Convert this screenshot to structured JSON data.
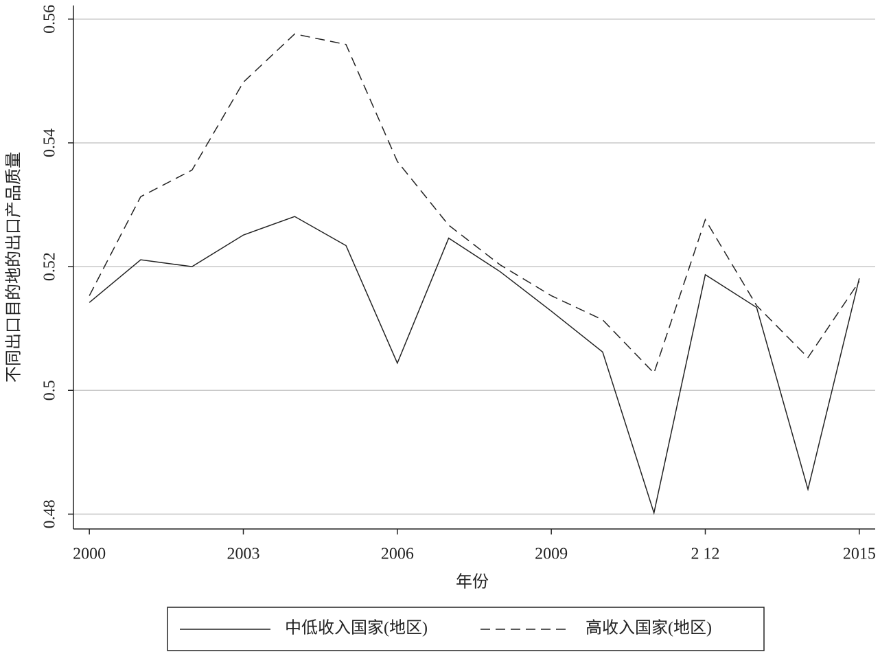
{
  "chart_data": {
    "type": "line",
    "x_label": "年份",
    "y_label": "不同出口目的地的出口产品质量",
    "x": [
      2000,
      2001,
      2002,
      2003,
      2004,
      2005,
      2006,
      2007,
      2008,
      2009,
      2010,
      2011,
      2012,
      2013,
      2014,
      2015
    ],
    "series": [
      {
        "name": "中低收入国家(地区)",
        "color": "#222222",
        "style": "solid",
        "values": [
          0.5142,
          0.5211,
          0.52,
          0.5251,
          0.5281,
          0.5234,
          0.5044,
          0.5246,
          0.5192,
          0.5128,
          0.5062,
          0.4802,
          0.5187,
          0.5134,
          0.484,
          0.5181
        ]
      },
      {
        "name": "高收入国家(地区)",
        "color": "#222222",
        "style": "dashed",
        "values": [
          0.5153,
          0.5313,
          0.5356,
          0.5498,
          0.5576,
          0.5559,
          0.537,
          0.5267,
          0.5203,
          0.5153,
          0.5114,
          0.5028,
          0.5276,
          0.5137,
          0.5053,
          0.5176
        ]
      }
    ],
    "xlim": [
      1999.69,
      2015.31
    ],
    "xticks": [
      2000,
      2003,
      2006,
      2009,
      {
        "value": 2012,
        "label": "2 12"
      },
      2015
    ],
    "ylim": [
      0.4776,
      0.5622
    ],
    "yticks": [
      0.48,
      0.5,
      0.52,
      0.54,
      0.56
    ],
    "grid": true,
    "legend": "bottom"
  }
}
